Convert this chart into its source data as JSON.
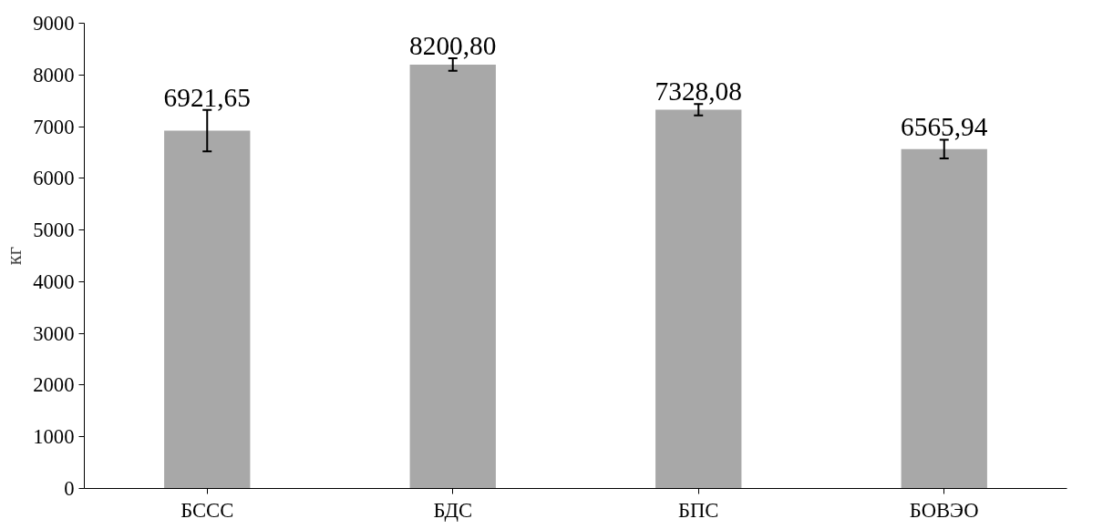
{
  "chart_data": {
    "type": "bar",
    "ylabel": "кг",
    "categories": [
      "БССС",
      "БДС",
      "БПС",
      "БОВЭО"
    ],
    "values": [
      6921.65,
      8200.8,
      7328.08,
      6565.94
    ],
    "value_labels": [
      "6921,65",
      "8200,80",
      "7328,08",
      "6565,94"
    ],
    "errors": [
      400,
      120,
      110,
      180
    ],
    "color": "#a8a8a8",
    "ylim": [
      0,
      9000
    ],
    "yticks": [
      0,
      1000,
      2000,
      3000,
      4000,
      5000,
      6000,
      7000,
      8000,
      9000
    ],
    "grid": false
  }
}
